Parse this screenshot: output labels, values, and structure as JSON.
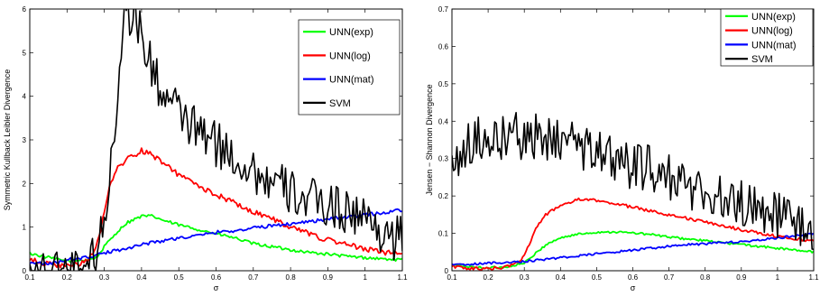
{
  "chart_data": [
    {
      "type": "line",
      "title": "",
      "xlabel": "σ",
      "ylabel": "Symmetric Kullback Leibler Divergence",
      "xlim": [
        0.1,
        1.1
      ],
      "ylim": [
        0,
        6
      ],
      "xticks": [
        "0.1",
        "0.2",
        "0.3",
        "0.4",
        "0.5",
        "0.6",
        "0.7",
        "0.8",
        "0.9",
        "1",
        "1.1"
      ],
      "yticks": [
        "0",
        "1",
        "2",
        "3",
        "4",
        "5",
        "6"
      ],
      "legend_position": "top-right",
      "series": [
        {
          "name": "UNN(exp)",
          "color": "#00ff00",
          "noise": 0.035,
          "x": [
            0.1,
            0.15,
            0.2,
            0.25,
            0.28,
            0.3,
            0.33,
            0.36,
            0.4,
            0.43,
            0.46,
            0.5,
            0.55,
            0.6,
            0.65,
            0.7,
            0.75,
            0.8,
            0.85,
            0.9,
            0.95,
            1.0,
            1.05,
            1.1
          ],
          "y": [
            0.4,
            0.3,
            0.22,
            0.25,
            0.3,
            0.55,
            0.85,
            1.1,
            1.25,
            1.25,
            1.15,
            1.05,
            0.95,
            0.85,
            0.75,
            0.62,
            0.55,
            0.48,
            0.42,
            0.38,
            0.33,
            0.3,
            0.27,
            0.25
          ]
        },
        {
          "name": "UNN(log)",
          "color": "#ff0000",
          "noise": 0.06,
          "x": [
            0.1,
            0.15,
            0.2,
            0.25,
            0.27,
            0.29,
            0.31,
            0.33,
            0.36,
            0.4,
            0.43,
            0.46,
            0.5,
            0.55,
            0.6,
            0.65,
            0.7,
            0.75,
            0.8,
            0.85,
            0.9,
            0.95,
            1.0,
            1.05,
            1.1
          ],
          "y": [
            0.25,
            0.15,
            0.1,
            0.2,
            0.4,
            0.9,
            1.8,
            2.3,
            2.55,
            2.75,
            2.65,
            2.45,
            2.2,
            1.95,
            1.75,
            1.55,
            1.35,
            1.2,
            1.0,
            0.85,
            0.7,
            0.6,
            0.5,
            0.42,
            0.38
          ]
        },
        {
          "name": "UNN(mat)",
          "color": "#0000ff",
          "noise": 0.04,
          "x": [
            0.1,
            0.15,
            0.2,
            0.25,
            0.3,
            0.35,
            0.4,
            0.45,
            0.5,
            0.55,
            0.6,
            0.65,
            0.7,
            0.75,
            0.8,
            0.85,
            0.9,
            0.95,
            1.0,
            1.05,
            1.1
          ],
          "y": [
            0.2,
            0.15,
            0.25,
            0.3,
            0.4,
            0.5,
            0.6,
            0.68,
            0.75,
            0.8,
            0.88,
            0.92,
            0.98,
            1.03,
            1.08,
            1.13,
            1.18,
            1.23,
            1.28,
            1.33,
            1.4
          ]
        },
        {
          "name": "SVM",
          "color": "#000000",
          "noise": 0.55,
          "x": [
            0.1,
            0.2,
            0.27,
            0.3,
            0.33,
            0.35,
            0.38,
            0.42,
            0.46,
            0.5,
            0.55,
            0.6,
            0.65,
            0.7,
            0.75,
            0.8,
            0.85,
            0.9,
            0.95,
            1.0,
            1.05,
            1.1
          ],
          "y": [
            0.0,
            0.0,
            0.3,
            1.0,
            3.5,
            5.8,
            6.0,
            4.8,
            4.0,
            3.6,
            3.2,
            2.9,
            2.6,
            2.3,
            2.0,
            1.8,
            1.6,
            1.5,
            1.4,
            1.2,
            0.9,
            0.7
          ]
        }
      ]
    },
    {
      "type": "line",
      "title": "",
      "xlabel": "σ",
      "ylabel": "Jensen − Shannon Divergence",
      "xlim": [
        0.1,
        1.1
      ],
      "ylim": [
        0,
        0.7
      ],
      "xticks": [
        "0.1",
        "0.2",
        "0.3",
        "0.4",
        "0.5",
        "0.6",
        "0.7",
        "0.8",
        "0.9",
        "1",
        "1.1"
      ],
      "yticks": [
        "0",
        "0.1",
        "0.2",
        "0.3",
        "0.4",
        "0.5",
        "0.6",
        "0.7"
      ],
      "legend_position": "top-right",
      "series": [
        {
          "name": "UNN(exp)",
          "color": "#00ff00",
          "noise": 0.003,
          "x": [
            0.1,
            0.15,
            0.2,
            0.25,
            0.3,
            0.33,
            0.36,
            0.4,
            0.45,
            0.5,
            0.55,
            0.6,
            0.65,
            0.7,
            0.75,
            0.8,
            0.85,
            0.9,
            0.95,
            1.0,
            1.05,
            1.1
          ],
          "y": [
            0.015,
            0.01,
            0.008,
            0.01,
            0.02,
            0.045,
            0.07,
            0.088,
            0.098,
            0.103,
            0.104,
            0.101,
            0.097,
            0.09,
            0.085,
            0.08,
            0.075,
            0.07,
            0.065,
            0.06,
            0.055,
            0.05
          ]
        },
        {
          "name": "UNN(log)",
          "color": "#ff0000",
          "noise": 0.004,
          "x": [
            0.1,
            0.15,
            0.2,
            0.25,
            0.28,
            0.3,
            0.33,
            0.36,
            0.4,
            0.45,
            0.5,
            0.55,
            0.6,
            0.65,
            0.7,
            0.75,
            0.8,
            0.85,
            0.9,
            0.95,
            1.0,
            1.05,
            1.1
          ],
          "y": [
            0.012,
            0.006,
            0.005,
            0.01,
            0.02,
            0.04,
            0.11,
            0.15,
            0.175,
            0.19,
            0.188,
            0.18,
            0.17,
            0.16,
            0.15,
            0.14,
            0.13,
            0.12,
            0.11,
            0.1,
            0.092,
            0.085,
            0.08
          ]
        },
        {
          "name": "UNN(mat)",
          "color": "#0000ff",
          "noise": 0.003,
          "x": [
            0.1,
            0.2,
            0.3,
            0.35,
            0.4,
            0.45,
            0.5,
            0.55,
            0.6,
            0.65,
            0.7,
            0.75,
            0.8,
            0.85,
            0.9,
            0.95,
            1.0,
            1.05,
            1.1
          ],
          "y": [
            0.015,
            0.02,
            0.025,
            0.03,
            0.035,
            0.04,
            0.045,
            0.05,
            0.055,
            0.06,
            0.065,
            0.07,
            0.072,
            0.075,
            0.078,
            0.082,
            0.088,
            0.093,
            0.1
          ]
        },
        {
          "name": "SVM",
          "color": "#000000",
          "noise": 0.065,
          "x": [
            0.1,
            0.15,
            0.2,
            0.25,
            0.3,
            0.35,
            0.4,
            0.45,
            0.5,
            0.55,
            0.6,
            0.65,
            0.7,
            0.75,
            0.8,
            0.85,
            0.9,
            0.95,
            1.0,
            1.05,
            1.1
          ],
          "y": [
            0.3,
            0.34,
            0.36,
            0.36,
            0.36,
            0.36,
            0.34,
            0.33,
            0.32,
            0.3,
            0.28,
            0.27,
            0.25,
            0.23,
            0.21,
            0.19,
            0.18,
            0.17,
            0.15,
            0.13,
            0.11
          ]
        }
      ]
    }
  ]
}
